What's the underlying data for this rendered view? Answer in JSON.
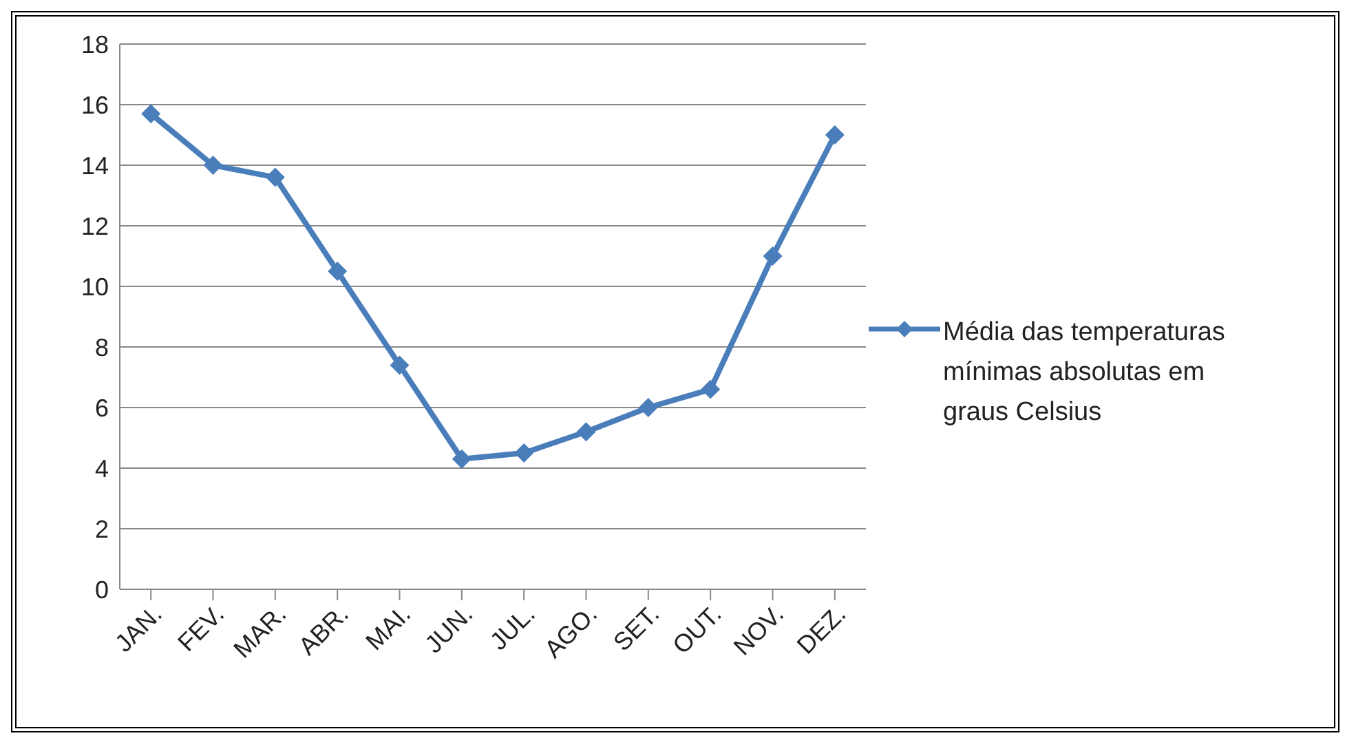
{
  "chart_data": {
    "type": "line",
    "categories": [
      "JAN.",
      "FEV.",
      "MAR.",
      "ABR.",
      "MAI.",
      "JUN.",
      "JUL.",
      "AGO.",
      "SET.",
      "OUT.",
      "NOV.",
      "DEZ."
    ],
    "series": [
      {
        "name": "Média das temperaturas mínimas absolutas em graus Celsius",
        "color": "#4a7ebb",
        "values": [
          15.7,
          14.0,
          13.6,
          10.5,
          7.4,
          4.3,
          4.5,
          5.2,
          6.0,
          6.6,
          11.0,
          15.0
        ]
      }
    ],
    "ylim": [
      0,
      18
    ],
    "yticks": [
      0,
      2,
      4,
      6,
      8,
      10,
      12,
      14,
      16,
      18
    ],
    "grid": "y",
    "legend": "right",
    "marker": "diamond",
    "line_style": "solid"
  }
}
